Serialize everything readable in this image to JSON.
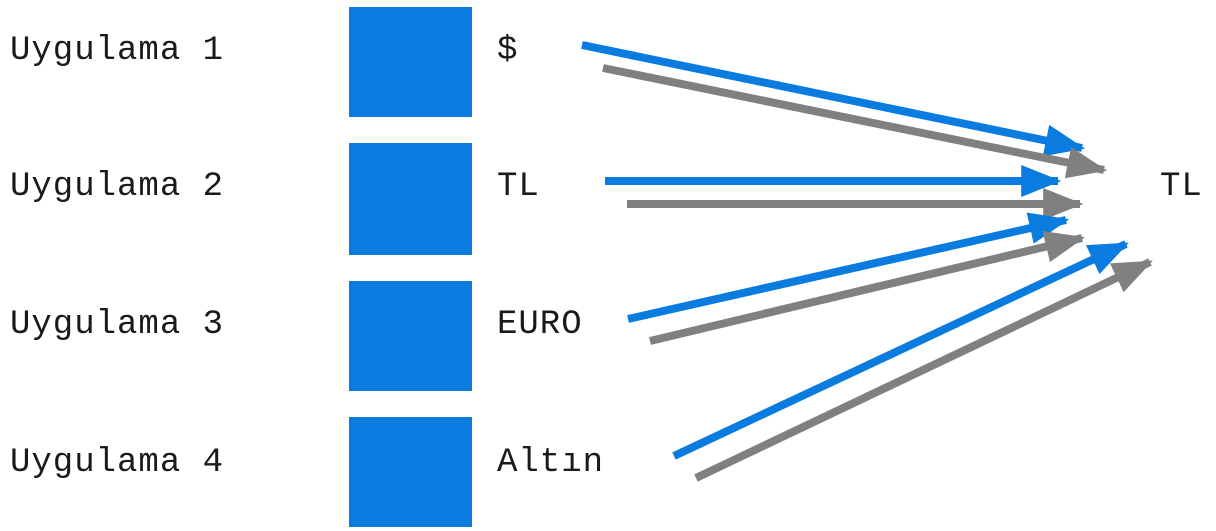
{
  "apps": [
    {
      "label": "Uygulama 1",
      "currency": "$"
    },
    {
      "label": "Uygulama 2",
      "currency": "TL"
    },
    {
      "label": "Uygulama 3",
      "currency": "EURO"
    },
    {
      "label": "Uygulama 4",
      "currency": "Altın"
    }
  ],
  "target": {
    "label": "TL"
  },
  "colors": {
    "box": "#0a7ce0",
    "arrow_primary": "#0a7ce0",
    "arrow_secondary": "#808080",
    "text": "#1a1a1a"
  },
  "icons": {
    "box": "square-block",
    "arrow": "arrow-right"
  }
}
